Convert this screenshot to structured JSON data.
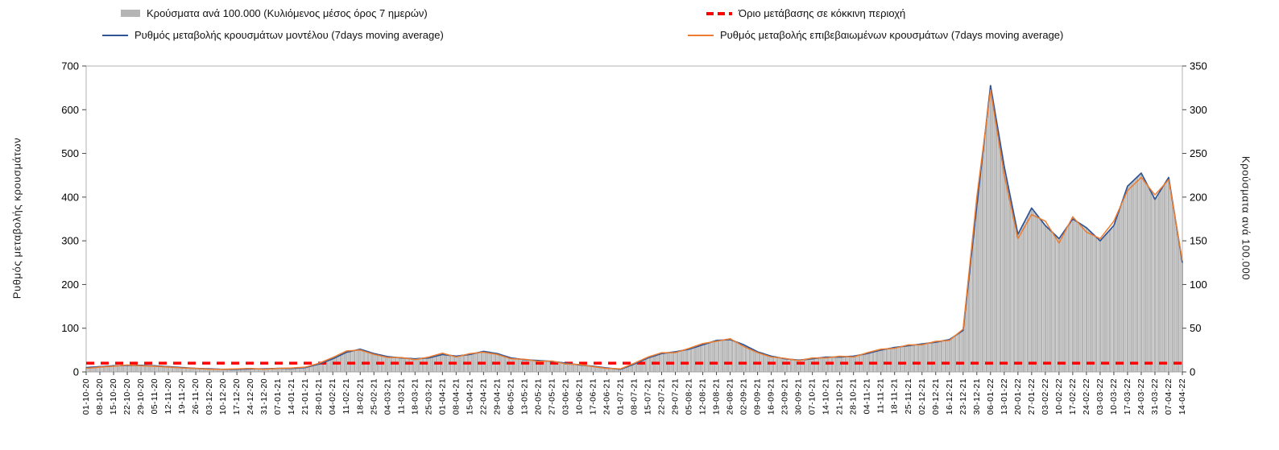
{
  "chart_data": {
    "type": "combo-bar-line",
    "legend_position": "top",
    "grid": false,
    "dates": [
      "01-10-20",
      "08-10-20",
      "15-10-20",
      "22-10-20",
      "29-10-20",
      "05-11-20",
      "12-11-20",
      "19-11-20",
      "26-11-20",
      "03-12-20",
      "10-12-20",
      "17-12-20",
      "24-12-20",
      "31-12-20",
      "07-01-21",
      "14-01-21",
      "21-01-21",
      "28-01-21",
      "04-02-21",
      "11-02-21",
      "18-02-21",
      "25-02-21",
      "04-03-21",
      "11-03-21",
      "18-03-21",
      "25-03-21",
      "01-04-21",
      "08-04-21",
      "15-04-21",
      "22-04-21",
      "29-04-21",
      "06-05-21",
      "13-05-21",
      "20-05-21",
      "27-05-21",
      "03-06-21",
      "10-06-21",
      "17-06-21",
      "24-06-21",
      "01-07-21",
      "08-07-21",
      "15-07-21",
      "22-07-21",
      "29-07-21",
      "05-08-21",
      "12-08-21",
      "19-08-21",
      "26-08-21",
      "02-09-21",
      "09-09-21",
      "16-09-21",
      "23-09-21",
      "30-09-21",
      "07-10-21",
      "14-10-21",
      "21-10-21",
      "28-10-21",
      "04-11-21",
      "11-11-21",
      "18-11-21",
      "25-11-21",
      "02-12-21",
      "09-12-21",
      "16-12-21",
      "23-12-21",
      "30-12-21",
      "06-01-22",
      "13-01-22",
      "20-01-22",
      "27-01-22",
      "03-02-22",
      "10-02-22",
      "17-02-22",
      "24-02-22",
      "03-03-22",
      "10-03-22",
      "17-03-22",
      "24-03-22",
      "31-03-22",
      "07-04-22",
      "14-04-22"
    ],
    "series": [
      {
        "name": "Κρούσματα ανά 100.000 (Κυλιόμενος μέσος όρος 7 ημερών)",
        "type": "bar",
        "axis": "right",
        "color": "#b5b5b5",
        "values": [
          5,
          6,
          7,
          8,
          7,
          7,
          6,
          5,
          4,
          3,
          3,
          3,
          4,
          3,
          4,
          4,
          5,
          9,
          15,
          23,
          26,
          21,
          17,
          16,
          15,
          16,
          20,
          18,
          20,
          23,
          21,
          16,
          14,
          13,
          12,
          10,
          8,
          6,
          4,
          3,
          9,
          16,
          21,
          23,
          26,
          31,
          36,
          37,
          31,
          23,
          18,
          15,
          13,
          15,
          17,
          17,
          18,
          21,
          25,
          28,
          30,
          32,
          34,
          37,
          48,
          190,
          328,
          235,
          157,
          187,
          167,
          152,
          175,
          165,
          150,
          167,
          212,
          227,
          197,
          222,
          125
        ]
      },
      {
        "name": "Όριο μετάβασης σε κόκκινη περιοχή",
        "type": "dashed-threshold",
        "axis": "left",
        "color": "#ff0000",
        "value": 20
      },
      {
        "name": "Ρυθμός μεταβολής κρουσμάτων μοντέλου (7days moving average)",
        "type": "line",
        "axis": "left",
        "color": "#2f5597",
        "values": [
          10,
          12,
          14,
          15,
          15,
          14,
          12,
          10,
          8,
          7,
          6,
          6,
          7,
          7,
          8,
          8,
          10,
          18,
          30,
          45,
          52,
          42,
          35,
          32,
          30,
          32,
          40,
          36,
          40,
          47,
          42,
          32,
          28,
          26,
          24,
          20,
          16,
          13,
          9,
          6,
          18,
          32,
          42,
          46,
          52,
          62,
          72,
          74,
          62,
          46,
          36,
          30,
          27,
          30,
          34,
          34,
          36,
          42,
          50,
          56,
          60,
          64,
          68,
          74,
          95,
          380,
          655,
          470,
          315,
          375,
          335,
          305,
          350,
          330,
          300,
          335,
          425,
          455,
          395,
          445,
          250
        ]
      },
      {
        "name": "Ρυθμός μεταβολής επιβεβαιωμένων κρουσμάτων (7days moving average)",
        "type": "line",
        "axis": "left",
        "color": "#ed7d31",
        "values": [
          8,
          11,
          13,
          16,
          14,
          13,
          11,
          9,
          8,
          6,
          6,
          7,
          8,
          6,
          8,
          9,
          11,
          20,
          33,
          48,
          50,
          40,
          33,
          33,
          28,
          34,
          43,
          34,
          42,
          45,
          40,
          30,
          29,
          24,
          25,
          18,
          17,
          12,
          8,
          7,
          20,
          34,
          44,
          44,
          54,
          65,
          70,
          76,
          58,
          44,
          34,
          31,
          26,
          32,
          32,
          36,
          34,
          44,
          52,
          54,
          62,
          62,
          70,
          72,
          98,
          400,
          645,
          450,
          305,
          360,
          345,
          295,
          355,
          320,
          305,
          345,
          415,
          445,
          405,
          440,
          255
        ]
      }
    ],
    "left_axis": {
      "label": "Ρυθμός μεταβολής κρουσμάτων",
      "min": 0,
      "max": 700,
      "step": 100
    },
    "right_axis": {
      "label": "Κρούσματα ανά 100.000",
      "min": 0,
      "max": 350,
      "step": 50
    }
  }
}
